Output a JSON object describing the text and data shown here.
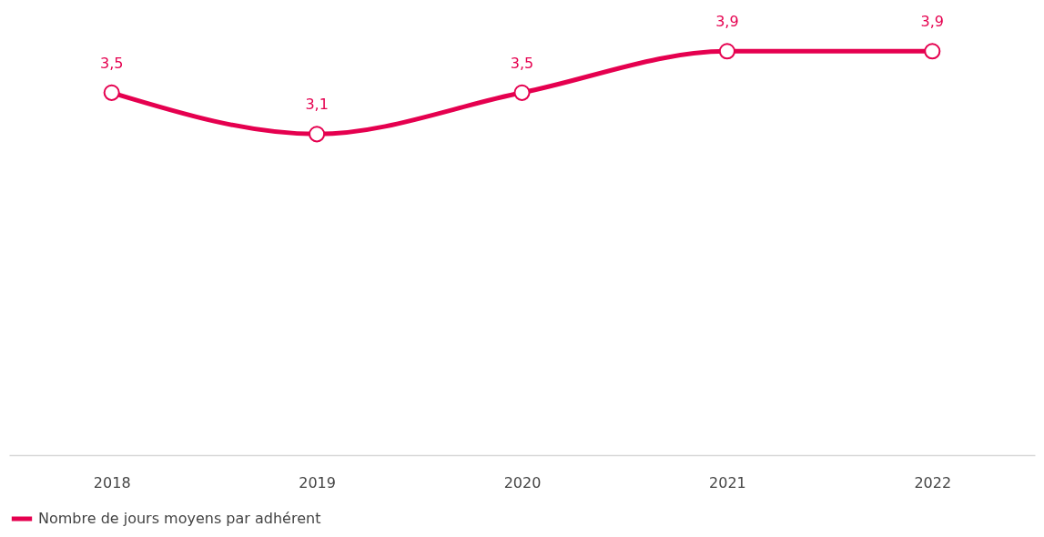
{
  "chart_data": {
    "type": "line",
    "categories": [
      "2018",
      "2019",
      "2020",
      "2021",
      "2022"
    ],
    "series": [
      {
        "name": "Nombre de jours moyens par adhérent",
        "color": "#e5004f",
        "values": [
          3.5,
          3.1,
          3.5,
          3.9,
          3.9
        ],
        "value_labels": [
          "3,5",
          "3,1",
          "3,5",
          "3,9",
          "3,9"
        ]
      }
    ],
    "legend": "bottom",
    "marker": "circle",
    "line_style": "solid"
  }
}
